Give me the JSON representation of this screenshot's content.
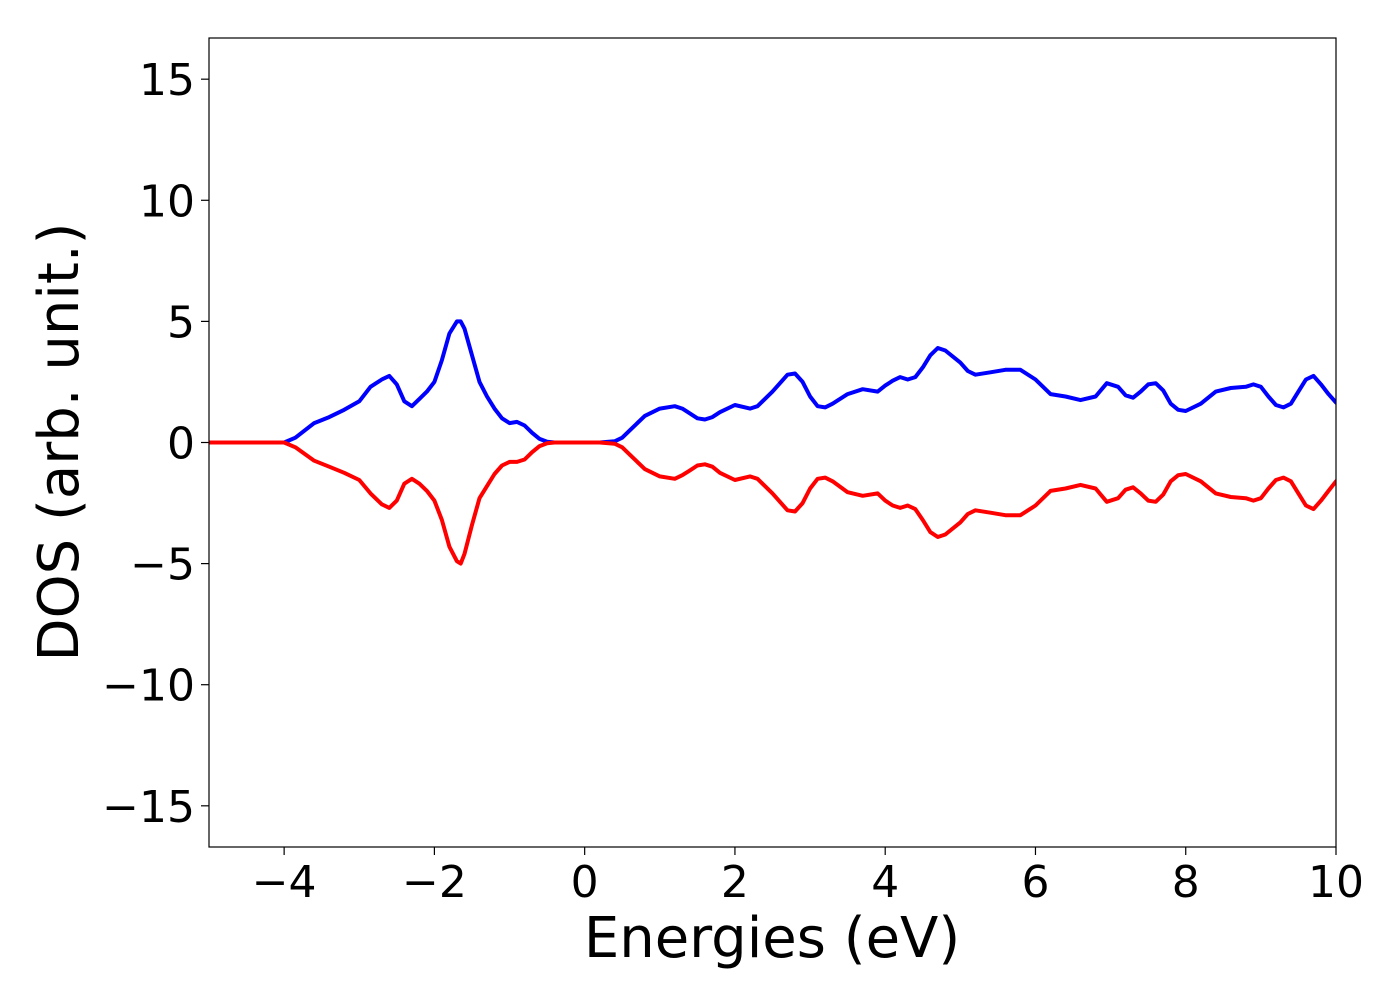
{
  "chart_data": {
    "type": "line",
    "title": "",
    "xlabel": "Energies (eV)",
    "ylabel": "DOS (arb. unit.)",
    "xlim": [
      -5,
      10
    ],
    "ylim": [
      -16.7,
      16.7
    ],
    "xticks": [
      -4,
      -2,
      0,
      2,
      4,
      6,
      8,
      10
    ],
    "xtick_labels": [
      "−4",
      "−2",
      "0",
      "2",
      "4",
      "6",
      "8",
      "10"
    ],
    "yticks": [
      15,
      10,
      5,
      0,
      -5,
      -10,
      -15
    ],
    "ytick_labels": [
      "15",
      "10",
      "5",
      "0",
      "−5",
      "−10",
      "−15"
    ],
    "grid": false,
    "legend": "none",
    "series": [
      {
        "color": "#0000ff",
        "x": [
          -5,
          -4.0,
          -3.85,
          -3.6,
          -3.4,
          -3.2,
          -3.0,
          -2.85,
          -2.7,
          -2.6,
          -2.5,
          -2.4,
          -2.3,
          -2.2,
          -2.1,
          -2.0,
          -1.9,
          -1.8,
          -1.7,
          -1.65,
          -1.6,
          -1.5,
          -1.4,
          -1.3,
          -1.2,
          -1.1,
          -1.0,
          -0.9,
          -0.8,
          -0.7,
          -0.6,
          -0.5,
          -0.4,
          -0.3,
          -0.2,
          0.0,
          0.2,
          0.4,
          0.5,
          0.6,
          0.8,
          1.0,
          1.2,
          1.3,
          1.4,
          1.5,
          1.6,
          1.7,
          1.8,
          2.0,
          2.2,
          2.3,
          2.5,
          2.7,
          2.8,
          2.9,
          3.0,
          3.1,
          3.2,
          3.3,
          3.5,
          3.7,
          3.9,
          4.0,
          4.1,
          4.2,
          4.3,
          4.4,
          4.5,
          4.6,
          4.7,
          4.8,
          5.0,
          5.1,
          5.2,
          5.4,
          5.6,
          5.8,
          6.0,
          6.2,
          6.4,
          6.6,
          6.8,
          6.95,
          7.1,
          7.2,
          7.3,
          7.4,
          7.5,
          7.6,
          7.7,
          7.8,
          7.9,
          8.0,
          8.2,
          8.4,
          8.6,
          8.8,
          8.9,
          9.0,
          9.1,
          9.2,
          9.3,
          9.4,
          9.5,
          9.6,
          9.7,
          9.8,
          9.9,
          10.0
        ],
        "values": [
          0,
          0,
          0.2,
          0.8,
          1.05,
          1.35,
          1.7,
          2.3,
          2.6,
          2.75,
          2.4,
          1.7,
          1.5,
          1.8,
          2.1,
          2.5,
          3.4,
          4.5,
          5.0,
          5.0,
          4.7,
          3.6,
          2.5,
          1.9,
          1.4,
          1.0,
          0.8,
          0.85,
          0.7,
          0.4,
          0.15,
          0.03,
          0,
          0,
          0,
          0,
          0,
          0.05,
          0.2,
          0.5,
          1.1,
          1.4,
          1.5,
          1.4,
          1.2,
          1.0,
          0.95,
          1.05,
          1.25,
          1.55,
          1.4,
          1.5,
          2.1,
          2.8,
          2.85,
          2.5,
          1.9,
          1.5,
          1.45,
          1.6,
          2.0,
          2.2,
          2.1,
          2.35,
          2.55,
          2.7,
          2.6,
          2.7,
          3.1,
          3.6,
          3.9,
          3.8,
          3.3,
          2.95,
          2.8,
          2.9,
          3.0,
          3.0,
          2.6,
          2.0,
          1.9,
          1.75,
          1.9,
          2.45,
          2.3,
          1.95,
          1.85,
          2.1,
          2.4,
          2.45,
          2.15,
          1.6,
          1.35,
          1.3,
          1.6,
          2.1,
          2.25,
          2.3,
          2.4,
          2.3,
          1.9,
          1.55,
          1.45,
          1.6,
          2.1,
          2.6,
          2.75,
          2.4,
          2.0,
          1.65
        ]
      },
      {
        "color": "#ff0000",
        "x": [
          -5,
          -4.0,
          -3.85,
          -3.6,
          -3.4,
          -3.2,
          -3.0,
          -2.85,
          -2.7,
          -2.6,
          -2.5,
          -2.4,
          -2.3,
          -2.2,
          -2.1,
          -2.0,
          -1.9,
          -1.8,
          -1.7,
          -1.65,
          -1.6,
          -1.5,
          -1.4,
          -1.3,
          -1.2,
          -1.1,
          -1.0,
          -0.9,
          -0.8,
          -0.7,
          -0.6,
          -0.5,
          -0.4,
          -0.3,
          -0.2,
          0.0,
          0.2,
          0.4,
          0.5,
          0.6,
          0.8,
          1.0,
          1.2,
          1.3,
          1.4,
          1.5,
          1.6,
          1.7,
          1.8,
          2.0,
          2.2,
          2.3,
          2.5,
          2.7,
          2.8,
          2.9,
          3.0,
          3.1,
          3.2,
          3.3,
          3.5,
          3.7,
          3.9,
          4.0,
          4.1,
          4.2,
          4.3,
          4.4,
          4.5,
          4.6,
          4.7,
          4.8,
          5.0,
          5.1,
          5.2,
          5.4,
          5.6,
          5.8,
          6.0,
          6.2,
          6.4,
          6.6,
          6.8,
          6.95,
          7.1,
          7.2,
          7.3,
          7.4,
          7.5,
          7.6,
          7.7,
          7.8,
          7.9,
          8.0,
          8.2,
          8.4,
          8.6,
          8.8,
          8.9,
          9.0,
          9.1,
          9.2,
          9.3,
          9.4,
          9.5,
          9.6,
          9.7,
          9.8,
          9.9,
          10.0
        ],
        "values": [
          0,
          0,
          -0.2,
          -0.75,
          -1.0,
          -1.25,
          -1.55,
          -2.1,
          -2.55,
          -2.7,
          -2.4,
          -1.7,
          -1.5,
          -1.7,
          -2.0,
          -2.4,
          -3.2,
          -4.3,
          -4.9,
          -5.0,
          -4.6,
          -3.4,
          -2.3,
          -1.8,
          -1.3,
          -0.95,
          -0.8,
          -0.8,
          -0.7,
          -0.4,
          -0.15,
          -0.03,
          0,
          0,
          0,
          0,
          0,
          -0.05,
          -0.2,
          -0.5,
          -1.1,
          -1.4,
          -1.5,
          -1.35,
          -1.15,
          -0.95,
          -0.9,
          -1.0,
          -1.25,
          -1.55,
          -1.4,
          -1.5,
          -2.1,
          -2.8,
          -2.85,
          -2.5,
          -1.9,
          -1.5,
          -1.45,
          -1.6,
          -2.05,
          -2.2,
          -2.1,
          -2.4,
          -2.6,
          -2.7,
          -2.6,
          -2.75,
          -3.2,
          -3.7,
          -3.9,
          -3.8,
          -3.3,
          -2.95,
          -2.8,
          -2.9,
          -3.0,
          -3.0,
          -2.6,
          -2.0,
          -1.9,
          -1.75,
          -1.9,
          -2.45,
          -2.3,
          -1.95,
          -1.85,
          -2.1,
          -2.4,
          -2.45,
          -2.15,
          -1.6,
          -1.35,
          -1.3,
          -1.6,
          -2.1,
          -2.25,
          -2.3,
          -2.4,
          -2.3,
          -1.9,
          -1.55,
          -1.45,
          -1.6,
          -2.1,
          -2.6,
          -2.75,
          -2.4,
          -2.0,
          -1.6
        ]
      }
    ]
  }
}
